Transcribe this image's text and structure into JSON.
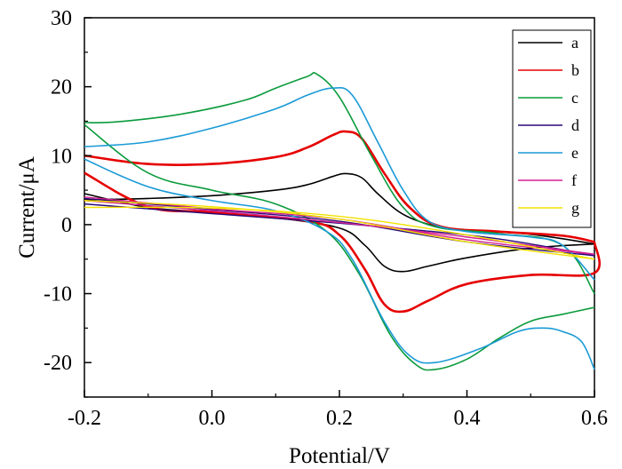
{
  "chart_data": {
    "type": "line",
    "title": "",
    "xlabel": "Potential/V",
    "ylabel": "Current/μA",
    "xlim": [
      -0.2,
      0.6
    ],
    "ylim": [
      -25,
      30
    ],
    "xticks": [
      -0.2,
      0.0,
      0.2,
      0.4,
      0.6
    ],
    "xtick_labels": [
      "-0.2",
      "0.0",
      "0.2",
      "0.4",
      "0.6"
    ],
    "yticks": [
      -20,
      -10,
      0,
      10,
      20,
      30
    ],
    "ytick_labels": [
      "-20",
      "-10",
      "0",
      "10",
      "20",
      "30"
    ],
    "grid": false,
    "legend_position": "top-right",
    "series": [
      {
        "name": "a",
        "color": "#000000",
        "forward": [
          [
            -0.2,
            3.6
          ],
          [
            -0.1,
            3.8
          ],
          [
            0.0,
            4.2
          ],
          [
            0.1,
            5.0
          ],
          [
            0.15,
            5.8
          ],
          [
            0.19,
            7.0
          ],
          [
            0.21,
            7.4
          ],
          [
            0.235,
            6.8
          ],
          [
            0.26,
            4.5
          ],
          [
            0.3,
            1.5
          ],
          [
            0.35,
            -0.2
          ],
          [
            0.4,
            -0.8
          ],
          [
            0.5,
            -1.4
          ],
          [
            0.6,
            -2.8
          ]
        ],
        "reverse": [
          [
            0.6,
            -2.8
          ],
          [
            0.5,
            -3.4
          ],
          [
            0.4,
            -4.8
          ],
          [
            0.34,
            -6.0
          ],
          [
            0.3,
            -6.8
          ],
          [
            0.27,
            -6.0
          ],
          [
            0.24,
            -3.0
          ],
          [
            0.2,
            -0.5
          ],
          [
            0.1,
            1.0
          ],
          [
            0.0,
            1.8
          ],
          [
            -0.1,
            2.5
          ],
          [
            -0.2,
            4.5
          ]
        ]
      },
      {
        "name": "b",
        "color": "#e60000",
        "forward": [
          [
            -0.2,
            10.0
          ],
          [
            -0.1,
            8.8
          ],
          [
            0.0,
            8.8
          ],
          [
            0.1,
            9.8
          ],
          [
            0.15,
            11.2
          ],
          [
            0.19,
            13.0
          ],
          [
            0.21,
            13.5
          ],
          [
            0.235,
            12.5
          ],
          [
            0.27,
            7.5
          ],
          [
            0.31,
            2.5
          ],
          [
            0.36,
            -0.3
          ],
          [
            0.45,
            -1.0
          ],
          [
            0.55,
            -1.6
          ],
          [
            0.6,
            -2.5
          ]
        ],
        "reverse": [
          [
            0.6,
            -2.5
          ],
          [
            0.6,
            -7.0
          ],
          [
            0.5,
            -7.3
          ],
          [
            0.4,
            -8.6
          ],
          [
            0.34,
            -11.0
          ],
          [
            0.3,
            -12.6
          ],
          [
            0.27,
            -11.5
          ],
          [
            0.24,
            -6.5
          ],
          [
            0.2,
            -1.5
          ],
          [
            0.15,
            0.5
          ],
          [
            0.0,
            1.8
          ],
          [
            -0.1,
            2.6
          ],
          [
            -0.2,
            7.5
          ]
        ]
      },
      {
        "name": "c",
        "color": "#0a9b3c",
        "forward": [
          [
            -0.2,
            14.8
          ],
          [
            -0.15,
            14.9
          ],
          [
            -0.05,
            16.0
          ],
          [
            0.05,
            18.0
          ],
          [
            0.1,
            19.8
          ],
          [
            0.15,
            21.5
          ],
          [
            0.165,
            21.8
          ],
          [
            0.2,
            18.5
          ],
          [
            0.25,
            10.0
          ],
          [
            0.3,
            2.5
          ],
          [
            0.35,
            -0.3
          ],
          [
            0.45,
            -1.3
          ],
          [
            0.55,
            -3.0
          ],
          [
            0.6,
            -10.0
          ]
        ],
        "reverse": [
          [
            0.6,
            -12.0
          ],
          [
            0.55,
            -13.0
          ],
          [
            0.5,
            -14.0
          ],
          [
            0.45,
            -16.5
          ],
          [
            0.4,
            -19.5
          ],
          [
            0.35,
            -21.0
          ],
          [
            0.32,
            -20.3
          ],
          [
            0.28,
            -16.0
          ],
          [
            0.23,
            -7.0
          ],
          [
            0.18,
            -1.0
          ],
          [
            0.1,
            3.0
          ],
          [
            0.0,
            5.0
          ],
          [
            -0.1,
            7.5
          ],
          [
            -0.2,
            14.5
          ]
        ]
      },
      {
        "name": "d",
        "color": "#2b0a7a",
        "forward": [
          [
            -0.2,
            3.0
          ],
          [
            0.0,
            1.6
          ],
          [
            0.2,
            0.2
          ],
          [
            0.4,
            -1.5
          ],
          [
            0.5,
            -2.8
          ],
          [
            0.6,
            -4.5
          ]
        ],
        "reverse": [
          [
            0.6,
            -4.5
          ],
          [
            0.4,
            -2.5
          ],
          [
            0.2,
            0.5
          ],
          [
            0.0,
            2.2
          ],
          [
            -0.2,
            3.8
          ]
        ]
      },
      {
        "name": "e",
        "color": "#1a9ad6",
        "forward": [
          [
            -0.2,
            11.3
          ],
          [
            -0.1,
            12.0
          ],
          [
            0.0,
            14.0
          ],
          [
            0.1,
            16.8
          ],
          [
            0.15,
            18.8
          ],
          [
            0.19,
            19.8
          ],
          [
            0.22,
            18.8
          ],
          [
            0.26,
            12.0
          ],
          [
            0.3,
            5.0
          ],
          [
            0.34,
            0.5
          ],
          [
            0.4,
            -1.0
          ],
          [
            0.5,
            -1.8
          ],
          [
            0.55,
            -3.0
          ],
          [
            0.6,
            -8.0
          ]
        ],
        "reverse": [
          [
            0.6,
            -21.0
          ],
          [
            0.58,
            -17.0
          ],
          [
            0.55,
            -15.5
          ],
          [
            0.52,
            -15.0
          ],
          [
            0.48,
            -15.5
          ],
          [
            0.42,
            -18.0
          ],
          [
            0.35,
            -20.0
          ],
          [
            0.31,
            -19.0
          ],
          [
            0.27,
            -14.0
          ],
          [
            0.22,
            -5.0
          ],
          [
            0.18,
            -1.0
          ],
          [
            0.1,
            2.0
          ],
          [
            0.0,
            3.5
          ],
          [
            -0.1,
            5.5
          ],
          [
            -0.2,
            9.5
          ]
        ]
      },
      {
        "name": "f",
        "color": "#d4208f",
        "forward": [
          [
            -0.2,
            3.5
          ],
          [
            0.0,
            2.0
          ],
          [
            0.2,
            0.3
          ],
          [
            0.4,
            -1.8
          ],
          [
            0.6,
            -4.3
          ]
        ],
        "reverse": [
          [
            0.6,
            -4.3
          ],
          [
            0.4,
            -2.2
          ],
          [
            0.2,
            0.8
          ],
          [
            0.0,
            2.3
          ],
          [
            -0.2,
            4.0
          ]
        ]
      },
      {
        "name": "g",
        "color": "#f2e100",
        "forward": [
          [
            -0.2,
            2.5
          ],
          [
            0.0,
            2.4
          ],
          [
            0.2,
            1.2
          ],
          [
            0.4,
            -1.5
          ],
          [
            0.6,
            -5.0
          ]
        ],
        "reverse": [
          [
            0.6,
            -5.0
          ],
          [
            0.4,
            -2.5
          ],
          [
            0.2,
            0.8
          ],
          [
            0.0,
            2.6
          ],
          [
            -0.2,
            3.5
          ]
        ]
      }
    ]
  }
}
